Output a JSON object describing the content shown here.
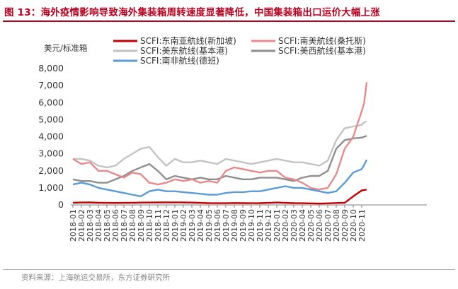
{
  "figure": {
    "title": "图 13：海外疫情影响导致海外集装箱周转速度显著降低，中国集装箱出口运价大幅上涨",
    "source": "资料来源：上海航运交易所，东方证券研究所"
  },
  "chart_data": {
    "type": "line",
    "title": "",
    "ylabel": "美元/标准箱",
    "xlabel": "",
    "ylim": [
      0,
      8000
    ],
    "yticks": [
      "0",
      "1,000",
      "2,000",
      "3,000",
      "4,000",
      "5,000",
      "6,000",
      "7,000",
      "8,000"
    ],
    "ytick_values": [
      0,
      1000,
      2000,
      3000,
      4000,
      5000,
      6000,
      7000,
      8000
    ],
    "categories": [
      "2018-01",
      "2018-02",
      "2018-03",
      "2018-04",
      "2018-05",
      "2018-06",
      "2018-07",
      "2018-08",
      "2018-09",
      "2018-10",
      "2018-11",
      "2018-12",
      "2019-01",
      "2019-02",
      "2019-03",
      "2019-04",
      "2019-05",
      "2019-06",
      "2019-07",
      "2019-08",
      "2019-09",
      "2019-10",
      "2019-11",
      "2019-12",
      "2020-01",
      "2020-02",
      "2020-03",
      "2020-04",
      "2020-05",
      "2020-06",
      "2020-07",
      "2020-08",
      "2020-09",
      "2020-10",
      "2020-11"
    ],
    "legend_position": "top",
    "grid": false,
    "series": [
      {
        "name": "SCFI:东南亚航线(新加坡)",
        "color": "#c00000",
        "values": [
          130,
          140,
          145,
          130,
          120,
          115,
          120,
          130,
          135,
          140,
          145,
          150,
          150,
          145,
          135,
          120,
          105,
          100,
          100,
          110,
          105,
          100,
          105,
          120,
          140,
          120,
          105,
          100,
          90,
          80,
          90,
          110,
          130,
          500,
          850
        ]
      },
      {
        "name": "SCFI:南美航线(桑托斯)",
        "color": "#e8898c",
        "values": [
          2700,
          2400,
          2500,
          2000,
          2000,
          1800,
          1600,
          1900,
          1800,
          1300,
          1200,
          1300,
          1500,
          1400,
          1500,
          1300,
          1400,
          1300,
          2000,
          2200,
          2100,
          2000,
          1900,
          2000,
          2000,
          1600,
          1500,
          1300,
          1000,
          900,
          1000,
          1800,
          3300,
          4000,
          5500
        ]
      },
      {
        "name": "SCFI:美东航线(基本港)",
        "color": "#c3c3c3",
        "values": [
          2700,
          2700,
          2600,
          2300,
          2200,
          2300,
          2700,
          3000,
          3300,
          3400,
          2800,
          2300,
          2700,
          2500,
          2500,
          2600,
          2500,
          2400,
          2700,
          2600,
          2500,
          2400,
          2500,
          2600,
          2700,
          2600,
          2500,
          2500,
          2400,
          2300,
          2600,
          3800,
          4500,
          4600,
          4700
        ]
      },
      {
        "name": "SCFI:美西航线(基本港)",
        "color": "#8f8f8f",
        "values": [
          1500,
          1400,
          1400,
          1300,
          1300,
          1500,
          1700,
          2000,
          2200,
          2400,
          2000,
          1500,
          1700,
          1600,
          1500,
          1600,
          1500,
          1500,
          1700,
          1600,
          1500,
          1500,
          1600,
          1600,
          1600,
          1500,
          1400,
          1600,
          1700,
          1700,
          2000,
          3300,
          3800,
          3900,
          3950
        ]
      },
      {
        "name": "SCFI:南非航线(德班)",
        "color": "#5b9bd5",
        "values": [
          1200,
          1300,
          1200,
          1000,
          900,
          800,
          700,
          600,
          500,
          800,
          900,
          800,
          800,
          750,
          700,
          650,
          600,
          600,
          700,
          750,
          750,
          800,
          800,
          900,
          1000,
          1100,
          1000,
          1000,
          900,
          800,
          700,
          800,
          1300,
          1900,
          2100
        ]
      }
    ],
    "series_tail": {
      "SCFI:南美航线(桑托斯)": [
        6000,
        7200
      ],
      "SCFI:美东航线(基本港)": [
        4850,
        4900
      ],
      "SCFI:美西航线(基本港)": [
        4000,
        4050
      ],
      "SCFI:南非航线(德班)": [
        2350,
        2650
      ],
      "SCFI:东南亚航线(新加坡)": [
        870,
        900
      ]
    }
  }
}
